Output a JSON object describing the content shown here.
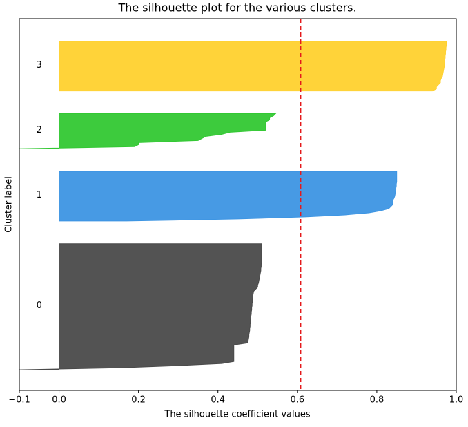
{
  "chart_data": {
    "type": "silhouette",
    "title": "The silhouette plot for the various clusters.",
    "x_label": "The silhouette coefficient values",
    "y_label": "Cluster label",
    "xlim": [
      -0.1,
      1.0
    ],
    "xticks": [
      {
        "value": -0.1,
        "label": "−0.1"
      },
      {
        "value": 0,
        "label": "0.0"
      },
      0.2,
      0.4,
      0.6,
      0.8,
      {
        "value": 1,
        "label": "1.0"
      }
    ],
    "average_score": 0.608,
    "average_line_color": "#e41a1c",
    "series": [
      {
        "name": "0",
        "color": "#4a4a4a",
        "values": [
          -0.1,
          0.16,
          0.3,
          0.41,
          0.44,
          0.44,
          0.44,
          0.44,
          0.44,
          0.44,
          0.44,
          0.44,
          0.44,
          0.475,
          0.476,
          0.477,
          0.478,
          0.478,
          0.479,
          0.48,
          0.48,
          0.481,
          0.481,
          0.482,
          0.482,
          0.483,
          0.483,
          0.484,
          0.484,
          0.485,
          0.485,
          0.486,
          0.486,
          0.487,
          0.487,
          0.488,
          0.488,
          0.489,
          0.49,
          0.495,
          0.5,
          0.5,
          0.502,
          0.503,
          0.504,
          0.505,
          0.506,
          0.507,
          0.508,
          0.508,
          0.509,
          0.509,
          0.51,
          0.51,
          0.51,
          0.51,
          0.51,
          0.51,
          0.51,
          0.51,
          0.51,
          0.51
        ]
      },
      {
        "name": "1",
        "color": "#3d95e3",
        "values": [
          0.17,
          0.45,
          0.62,
          0.72,
          0.78,
          0.81,
          0.83,
          0.835,
          0.84,
          0.84,
          0.84,
          0.843,
          0.845,
          0.846,
          0.847,
          0.848,
          0.848,
          0.849,
          0.849,
          0.85,
          0.85,
          0.85,
          0.85,
          0.85,
          0.85
        ]
      },
      {
        "name": "2",
        "color": "#33c833",
        "values": [
          -0.1,
          0.19,
          0.2,
          0.2,
          0.35,
          0.36,
          0.37,
          0.41,
          0.43,
          0.52,
          0.52,
          0.52,
          0.52,
          0.52,
          0.53,
          0.53,
          0.54,
          0.545
        ]
      },
      {
        "name": "3",
        "color": "#ffd12e",
        "values": [
          0.94,
          0.95,
          0.95,
          0.955,
          0.96,
          0.96,
          0.962,
          0.965,
          0.966,
          0.967,
          0.968,
          0.969,
          0.97,
          0.97,
          0.971,
          0.971,
          0.972,
          0.972,
          0.973,
          0.973,
          0.974,
          0.974,
          0.975,
          0.975,
          0.975
        ]
      }
    ]
  }
}
